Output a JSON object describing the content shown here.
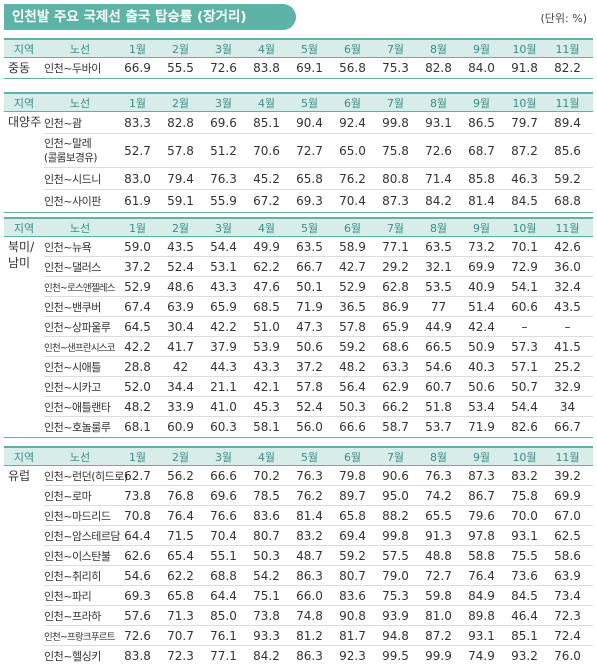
{
  "title": "인천발 주요 국제선 출국 탑승률 (장거리)",
  "unit": "(단위: %)",
  "headers": {
    "region": "지역",
    "route": "노선",
    "months": [
      "1월",
      "2월",
      "3월",
      "4월",
      "5월",
      "6월",
      "7월",
      "8월",
      "9월",
      "10월",
      "11월"
    ]
  },
  "sections": [
    {
      "region": "중동",
      "rows": [
        {
          "route": "인천~두바이",
          "values": [
            "66.9",
            "55.5",
            "72.6",
            "83.8",
            "69.1",
            "56.8",
            "75.3",
            "82.8",
            "84.0",
            "91.8",
            "82.2"
          ]
        }
      ]
    },
    {
      "region": "대양주",
      "rows": [
        {
          "route": "인천~괌",
          "values": [
            "83.3",
            "82.8",
            "69.6",
            "85.1",
            "90.4",
            "92.4",
            "99.8",
            "93.1",
            "86.5",
            "79.7",
            "89.4"
          ]
        },
        {
          "route": "인천~말레",
          "route2": "(콜롬보경유)",
          "values": [
            "52.7",
            "57.8",
            "51.2",
            "70.6",
            "72.7",
            "65.0",
            "75.8",
            "72.6",
            "68.7",
            "87.2",
            "85.6"
          ]
        },
        {
          "route": "인천~시드니",
          "values": [
            "83.0",
            "79.4",
            "76.3",
            "45.2",
            "65.8",
            "76.2",
            "80.8",
            "71.4",
            "85.8",
            "46.3",
            "59.2"
          ]
        },
        {
          "route": "인천~사이판",
          "values": [
            "61.9",
            "59.1",
            "55.9",
            "67.2",
            "69.3",
            "70.4",
            "87.3",
            "84.2",
            "81.4",
            "84.5",
            "68.8"
          ]
        }
      ]
    },
    {
      "region": "북미/\n남미",
      "rows": [
        {
          "route": "인천~뉴욕",
          "values": [
            "59.0",
            "43.5",
            "54.4",
            "49.9",
            "63.5",
            "58.9",
            "77.1",
            "63.5",
            "73.2",
            "70.1",
            "42.6"
          ]
        },
        {
          "route": "인천~댈러스",
          "values": [
            "37.2",
            "52.4",
            "53.1",
            "62.2",
            "66.7",
            "42.7",
            "29.2",
            "32.1",
            "69.9",
            "72.9",
            "36.0"
          ]
        },
        {
          "route": "인천~로스앤젤레스",
          "small": true,
          "values": [
            "52.9",
            "48.6",
            "43.3",
            "47.6",
            "50.1",
            "52.9",
            "62.8",
            "53.5",
            "40.9",
            "54.1",
            "32.4"
          ]
        },
        {
          "route": "인천~밴쿠버",
          "values": [
            "67.4",
            "63.9",
            "65.9",
            "68.5",
            "71.9",
            "36.5",
            "86.9",
            "77",
            "51.4",
            "60.6",
            "43.5"
          ]
        },
        {
          "route": "인천~상파울루",
          "values": [
            "64.5",
            "30.4",
            "42.2",
            "51.0",
            "47.3",
            "57.8",
            "65.9",
            "44.9",
            "42.4",
            "–",
            "–"
          ]
        },
        {
          "route": "인천~샌프란시스코",
          "small": true,
          "values": [
            "42.2",
            "41.7",
            "37.9",
            "53.9",
            "50.6",
            "59.2",
            "68.6",
            "66.5",
            "50.9",
            "57.3",
            "41.5"
          ]
        },
        {
          "route": "인천~시애틀",
          "values": [
            "28.8",
            "42",
            "44.3",
            "43.3",
            "37.2",
            "48.2",
            "63.3",
            "54.6",
            "40.3",
            "57.1",
            "25.2"
          ]
        },
        {
          "route": "인천~시카고",
          "values": [
            "52.0",
            "34.4",
            "21.1",
            "42.1",
            "57.8",
            "56.4",
            "62.9",
            "60.7",
            "50.6",
            "50.7",
            "32.9"
          ]
        },
        {
          "route": "인천~애틀랜타",
          "values": [
            "48.2",
            "33.9",
            "41.0",
            "45.3",
            "52.4",
            "50.3",
            "66.2",
            "51.8",
            "53.4",
            "54.4",
            "34"
          ]
        },
        {
          "route": "인천~호놀룰루",
          "values": [
            "68.1",
            "60.9",
            "60.3",
            "58.1",
            "56.0",
            "66.6",
            "58.7",
            "53.7",
            "71.9",
            "82.6",
            "66.7"
          ]
        }
      ]
    },
    {
      "region": "유럽",
      "rows": [
        {
          "route": "인천~런던(히드로)",
          "values": [
            "62.7",
            "56.2",
            "66.6",
            "70.2",
            "76.3",
            "79.8",
            "90.6",
            "76.3",
            "87.3",
            "83.2",
            "39.2"
          ]
        },
        {
          "route": "인천~로마",
          "values": [
            "73.8",
            "76.8",
            "69.6",
            "78.5",
            "76.2",
            "89.7",
            "95.0",
            "74.2",
            "86.7",
            "75.8",
            "69.9"
          ]
        },
        {
          "route": "인천~마드리드",
          "values": [
            "70.8",
            "76.4",
            "76.6",
            "83.6",
            "81.4",
            "65.8",
            "88.2",
            "65.5",
            "79.6",
            "70.0",
            "67.0"
          ]
        },
        {
          "route": "인천~암스테르담",
          "values": [
            "64.4",
            "71.5",
            "70.4",
            "80.7",
            "83.2",
            "69.4",
            "99.8",
            "91.3",
            "97.8",
            "93.1",
            "62.5"
          ]
        },
        {
          "route": "인천~이스탄불",
          "values": [
            "62.6",
            "65.4",
            "55.1",
            "50.3",
            "48.7",
            "59.2",
            "57.5",
            "48.8",
            "58.8",
            "75.5",
            "58.6"
          ]
        },
        {
          "route": "인천~취리히",
          "values": [
            "54.6",
            "62.2",
            "68.8",
            "54.2",
            "86.3",
            "80.7",
            "79.0",
            "72.7",
            "76.4",
            "73.6",
            "63.9"
          ]
        },
        {
          "route": "인천~파리",
          "values": [
            "69.3",
            "65.8",
            "64.4",
            "75.1",
            "66.0",
            "83.6",
            "75.3",
            "59.8",
            "84.9",
            "84.5",
            "73.4"
          ]
        },
        {
          "route": "인천~프라하",
          "values": [
            "57.6",
            "71.3",
            "85.0",
            "73.8",
            "74.8",
            "90.8",
            "93.9",
            "81.0",
            "89.8",
            "46.4",
            "72.3"
          ]
        },
        {
          "route": "인천~프랑크푸르트",
          "small": true,
          "values": [
            "72.6",
            "70.7",
            "76.1",
            "93.3",
            "81.2",
            "81.7",
            "94.8",
            "87.2",
            "93.1",
            "85.1",
            "72.4"
          ]
        },
        {
          "route": "인천~헬싱키",
          "values": [
            "83.8",
            "72.3",
            "77.1",
            "84.2",
            "86.3",
            "92.3",
            "99.5",
            "99.9",
            "74.9",
            "93.2",
            "76.0"
          ]
        }
      ]
    }
  ]
}
